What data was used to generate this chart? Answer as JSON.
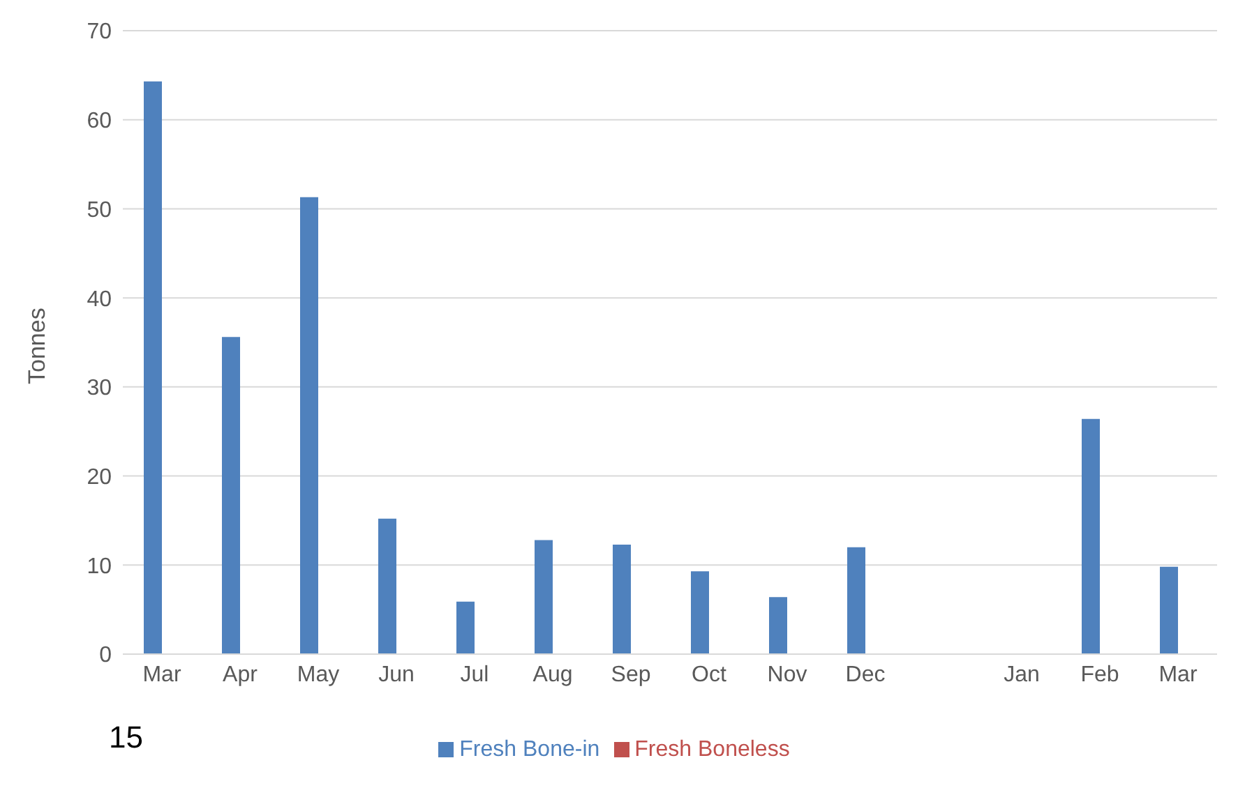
{
  "chart_data": {
    "type": "bar",
    "ylabel": "Tonnes",
    "categories": [
      "Mar",
      "Apr",
      "May",
      "Jun",
      "Jul",
      "Aug",
      "Sep",
      "Oct",
      "Nov",
      "Dec",
      null,
      "Jan",
      "Feb",
      "Mar"
    ],
    "series": [
      {
        "name": "Fresh Bone-in",
        "color": "#4f81bd",
        "values": [
          64.3,
          35.6,
          51.3,
          15.2,
          5.9,
          12.8,
          12.3,
          9.3,
          6.4,
          12.0,
          null,
          0,
          26.4,
          9.8
        ]
      },
      {
        "name": "Fresh Boneless",
        "color": "#c0504d",
        "values": [
          0,
          0,
          0,
          0,
          0,
          0,
          0,
          0,
          0,
          0,
          null,
          0,
          0,
          0
        ]
      }
    ],
    "ylim": [
      0,
      70
    ],
    "yticks": [
      0,
      10,
      20,
      30,
      40,
      50,
      60,
      70
    ],
    "grid": "y",
    "legend": "bottom",
    "annotations": [
      "15"
    ]
  }
}
